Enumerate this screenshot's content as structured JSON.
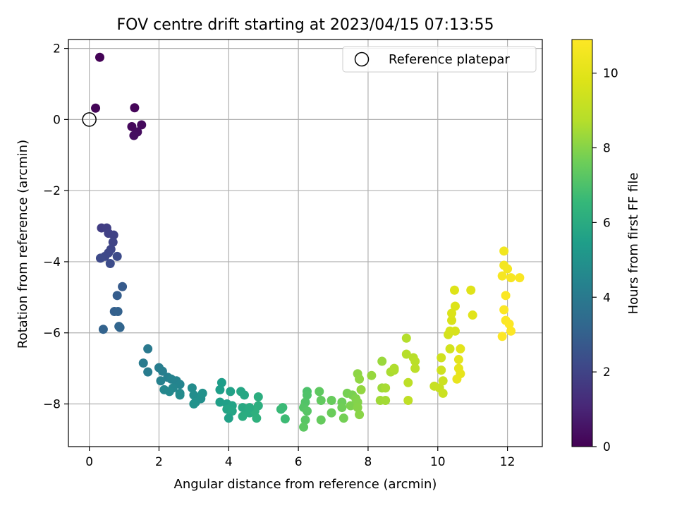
{
  "chart_data": {
    "type": "scatter",
    "title": "FOV centre drift starting at 2023/04/15 07:13:55",
    "xlabel": "Angular distance from reference (arcmin)",
    "ylabel": "Rotation from reference (arcmin)",
    "xlim": [
      -0.6,
      13.0
    ],
    "ylim": [
      -9.2,
      2.25
    ],
    "xticks": [
      0,
      2,
      4,
      6,
      8,
      10,
      12
    ],
    "yticks": [
      2,
      0,
      -2,
      -4,
      -6,
      -8
    ],
    "grid": true,
    "legend": {
      "label": "Reference platepar",
      "position": "top-right"
    },
    "reference_point": {
      "x": 0,
      "y": 0
    },
    "colorbar": {
      "label": "Hours from first FF file",
      "min": 0,
      "max": 10.9,
      "ticks": [
        0,
        2,
        4,
        6,
        8,
        10
      ],
      "colormap": "viridis"
    },
    "points": [
      {
        "x": 0.3,
        "y": 1.75,
        "c": 0.05
      },
      {
        "x": 0.18,
        "y": 0.32,
        "c": 0.1
      },
      {
        "x": 1.3,
        "y": 0.33,
        "c": 0.15
      },
      {
        "x": 1.22,
        "y": -0.2,
        "c": 0.2
      },
      {
        "x": 1.5,
        "y": -0.15,
        "c": 0.25
      },
      {
        "x": 1.38,
        "y": -0.35,
        "c": 0.3
      },
      {
        "x": 1.28,
        "y": -0.45,
        "c": 0.35
      },
      {
        "x": 0.35,
        "y": -3.05,
        "c": 1.8
      },
      {
        "x": 0.5,
        "y": -3.05,
        "c": 1.85
      },
      {
        "x": 0.55,
        "y": -3.2,
        "c": 1.9
      },
      {
        "x": 0.7,
        "y": -3.25,
        "c": 1.95
      },
      {
        "x": 0.68,
        "y": -3.45,
        "c": 2.0
      },
      {
        "x": 0.62,
        "y": -3.65,
        "c": 2.05
      },
      {
        "x": 0.55,
        "y": -3.75,
        "c": 2.1
      },
      {
        "x": 0.45,
        "y": -3.85,
        "c": 2.15
      },
      {
        "x": 0.32,
        "y": -3.9,
        "c": 2.2
      },
      {
        "x": 0.8,
        "y": -3.85,
        "c": 2.25
      },
      {
        "x": 0.6,
        "y": -4.05,
        "c": 2.3
      },
      {
        "x": 0.95,
        "y": -4.7,
        "c": 2.8
      },
      {
        "x": 0.8,
        "y": -4.95,
        "c": 2.9
      },
      {
        "x": 0.72,
        "y": -5.4,
        "c": 3.0
      },
      {
        "x": 0.82,
        "y": -5.4,
        "c": 3.05
      },
      {
        "x": 0.88,
        "y": -5.85,
        "c": 3.15
      },
      {
        "x": 0.85,
        "y": -5.82,
        "c": 3.2
      },
      {
        "x": 0.4,
        "y": -5.9,
        "c": 3.1
      },
      {
        "x": 1.68,
        "y": -6.45,
        "c": 4.0
      },
      {
        "x": 1.55,
        "y": -6.85,
        "c": 4.05
      },
      {
        "x": 1.68,
        "y": -7.1,
        "c": 4.1
      },
      {
        "x": 2.0,
        "y": -6.98,
        "c": 4.15
      },
      {
        "x": 2.1,
        "y": -7.08,
        "c": 4.2
      },
      {
        "x": 2.25,
        "y": -7.25,
        "c": 4.25
      },
      {
        "x": 2.05,
        "y": -7.35,
        "c": 4.3
      },
      {
        "x": 2.35,
        "y": -7.3,
        "c": 4.35
      },
      {
        "x": 2.5,
        "y": -7.35,
        "c": 4.4
      },
      {
        "x": 2.6,
        "y": -7.45,
        "c": 4.45
      },
      {
        "x": 2.4,
        "y": -7.55,
        "c": 4.5
      },
      {
        "x": 2.15,
        "y": -7.6,
        "c": 4.55
      },
      {
        "x": 2.3,
        "y": -7.65,
        "c": 4.6
      },
      {
        "x": 2.6,
        "y": -7.7,
        "c": 4.65
      },
      {
        "x": 2.6,
        "y": -7.75,
        "c": 4.7
      },
      {
        "x": 2.95,
        "y": -7.55,
        "c": 4.75
      },
      {
        "x": 3.0,
        "y": -7.75,
        "c": 4.8
      },
      {
        "x": 3.2,
        "y": -7.85,
        "c": 4.85
      },
      {
        "x": 3.05,
        "y": -7.95,
        "c": 4.9
      },
      {
        "x": 3.25,
        "y": -7.7,
        "c": 4.95
      },
      {
        "x": 3.0,
        "y": -8.0,
        "c": 5.0
      },
      {
        "x": 3.8,
        "y": -7.4,
        "c": 5.4
      },
      {
        "x": 3.75,
        "y": -7.6,
        "c": 5.45
      },
      {
        "x": 3.75,
        "y": -7.95,
        "c": 5.5
      },
      {
        "x": 3.95,
        "y": -8.0,
        "c": 5.55
      },
      {
        "x": 4.05,
        "y": -7.65,
        "c": 5.6
      },
      {
        "x": 4.1,
        "y": -8.05,
        "c": 5.65
      },
      {
        "x": 3.95,
        "y": -8.15,
        "c": 5.7
      },
      {
        "x": 4.1,
        "y": -8.2,
        "c": 5.75
      },
      {
        "x": 4.35,
        "y": -7.65,
        "c": 5.8
      },
      {
        "x": 4.45,
        "y": -7.75,
        "c": 5.85
      },
      {
        "x": 4.4,
        "y": -8.1,
        "c": 5.9
      },
      {
        "x": 4.55,
        "y": -8.2,
        "c": 5.95
      },
      {
        "x": 4.6,
        "y": -8.25,
        "c": 6.0
      },
      {
        "x": 4.4,
        "y": -8.35,
        "c": 6.05
      },
      {
        "x": 4.85,
        "y": -7.8,
        "c": 6.1
      },
      {
        "x": 4.85,
        "y": -8.05,
        "c": 6.15
      },
      {
        "x": 4.75,
        "y": -8.2,
        "c": 6.2
      },
      {
        "x": 4.8,
        "y": -8.4,
        "c": 6.25
      },
      {
        "x": 4.0,
        "y": -8.4,
        "c": 5.6
      },
      {
        "x": 4.6,
        "y": -8.1,
        "c": 6.0
      },
      {
        "x": 5.5,
        "y": -8.15,
        "c": 6.6
      },
      {
        "x": 5.55,
        "y": -8.1,
        "c": 6.65
      },
      {
        "x": 5.62,
        "y": -8.42,
        "c": 6.7
      },
      {
        "x": 6.25,
        "y": -7.65,
        "c": 7.0
      },
      {
        "x": 6.25,
        "y": -7.75,
        "c": 7.05
      },
      {
        "x": 6.2,
        "y": -7.95,
        "c": 7.1
      },
      {
        "x": 6.15,
        "y": -8.1,
        "c": 7.15
      },
      {
        "x": 6.25,
        "y": -8.2,
        "c": 7.2
      },
      {
        "x": 6.2,
        "y": -8.45,
        "c": 7.25
      },
      {
        "x": 6.15,
        "y": -8.65,
        "c": 7.3
      },
      {
        "x": 6.6,
        "y": -7.65,
        "c": 7.35
      },
      {
        "x": 6.65,
        "y": -7.9,
        "c": 7.4
      },
      {
        "x": 6.65,
        "y": -8.45,
        "c": 7.45
      },
      {
        "x": 6.95,
        "y": -7.9,
        "c": 7.5
      },
      {
        "x": 6.95,
        "y": -8.25,
        "c": 7.55
      },
      {
        "x": 7.25,
        "y": -7.95,
        "c": 7.6
      },
      {
        "x": 7.25,
        "y": -8.1,
        "c": 7.65
      },
      {
        "x": 7.3,
        "y": -8.4,
        "c": 7.7
      },
      {
        "x": 7.4,
        "y": -7.7,
        "c": 7.75
      },
      {
        "x": 7.55,
        "y": -7.75,
        "c": 7.8
      },
      {
        "x": 7.5,
        "y": -8.05,
        "c": 7.85
      },
      {
        "x": 7.65,
        "y": -7.85,
        "c": 7.9
      },
      {
        "x": 7.7,
        "y": -7.95,
        "c": 7.95
      },
      {
        "x": 7.7,
        "y": -8.1,
        "c": 8.0
      },
      {
        "x": 7.75,
        "y": -8.3,
        "c": 8.05
      },
      {
        "x": 7.7,
        "y": -7.15,
        "c": 8.1
      },
      {
        "x": 7.75,
        "y": -7.3,
        "c": 8.15
      },
      {
        "x": 7.8,
        "y": -7.6,
        "c": 8.2
      },
      {
        "x": 8.1,
        "y": -7.2,
        "c": 8.25
      },
      {
        "x": 8.4,
        "y": -6.8,
        "c": 8.3
      },
      {
        "x": 8.4,
        "y": -7.55,
        "c": 8.35
      },
      {
        "x": 8.35,
        "y": -7.9,
        "c": 8.4
      },
      {
        "x": 8.5,
        "y": -7.9,
        "c": 8.45
      },
      {
        "x": 8.5,
        "y": -7.55,
        "c": 8.5
      },
      {
        "x": 8.65,
        "y": -7.1,
        "c": 8.55
      },
      {
        "x": 8.75,
        "y": -7.05,
        "c": 8.6
      },
      {
        "x": 8.75,
        "y": -7.0,
        "c": 8.65
      },
      {
        "x": 9.1,
        "y": -6.15,
        "c": 8.7
      },
      {
        "x": 9.1,
        "y": -6.6,
        "c": 8.75
      },
      {
        "x": 9.3,
        "y": -6.7,
        "c": 8.8
      },
      {
        "x": 9.35,
        "y": -6.8,
        "c": 8.85
      },
      {
        "x": 9.35,
        "y": -7.0,
        "c": 8.9
      },
      {
        "x": 9.15,
        "y": -7.4,
        "c": 8.95
      },
      {
        "x": 9.15,
        "y": -7.9,
        "c": 9.0
      },
      {
        "x": 9.9,
        "y": -7.5,
        "c": 9.2
      },
      {
        "x": 10.05,
        "y": -7.55,
        "c": 9.25
      },
      {
        "x": 10.15,
        "y": -7.7,
        "c": 9.3
      },
      {
        "x": 10.15,
        "y": -7.35,
        "c": 9.35
      },
      {
        "x": 10.1,
        "y": -7.05,
        "c": 9.4
      },
      {
        "x": 10.1,
        "y": -6.7,
        "c": 9.45
      },
      {
        "x": 10.35,
        "y": -6.45,
        "c": 9.5
      },
      {
        "x": 10.3,
        "y": -6.05,
        "c": 9.55
      },
      {
        "x": 10.35,
        "y": -5.95,
        "c": 9.6
      },
      {
        "x": 10.5,
        "y": -5.95,
        "c": 9.65
      },
      {
        "x": 10.4,
        "y": -5.65,
        "c": 9.7
      },
      {
        "x": 10.4,
        "y": -5.45,
        "c": 9.75
      },
      {
        "x": 10.5,
        "y": -5.25,
        "c": 9.8
      },
      {
        "x": 10.48,
        "y": -4.8,
        "c": 9.85
      },
      {
        "x": 10.95,
        "y": -4.8,
        "c": 9.9
      },
      {
        "x": 11.0,
        "y": -5.5,
        "c": 9.95
      },
      {
        "x": 10.65,
        "y": -6.45,
        "c": 10.0
      },
      {
        "x": 10.6,
        "y": -6.75,
        "c": 10.05
      },
      {
        "x": 10.6,
        "y": -7.0,
        "c": 10.1
      },
      {
        "x": 10.65,
        "y": -7.15,
        "c": 10.15
      },
      {
        "x": 10.55,
        "y": -7.3,
        "c": 10.2
      },
      {
        "x": 11.9,
        "y": -3.7,
        "c": 10.5
      },
      {
        "x": 11.9,
        "y": -4.1,
        "c": 10.55
      },
      {
        "x": 12.0,
        "y": -4.2,
        "c": 10.6
      },
      {
        "x": 11.85,
        "y": -4.4,
        "c": 10.65
      },
      {
        "x": 12.1,
        "y": -4.45,
        "c": 10.7
      },
      {
        "x": 12.35,
        "y": -4.45,
        "c": 10.75
      },
      {
        "x": 11.95,
        "y": -4.95,
        "c": 10.8
      },
      {
        "x": 11.9,
        "y": -5.35,
        "c": 10.82
      },
      {
        "x": 11.95,
        "y": -5.65,
        "c": 10.84
      },
      {
        "x": 12.05,
        "y": -5.75,
        "c": 10.86
      },
      {
        "x": 12.1,
        "y": -5.95,
        "c": 10.88
      },
      {
        "x": 11.85,
        "y": -6.1,
        "c": 10.9
      }
    ]
  }
}
